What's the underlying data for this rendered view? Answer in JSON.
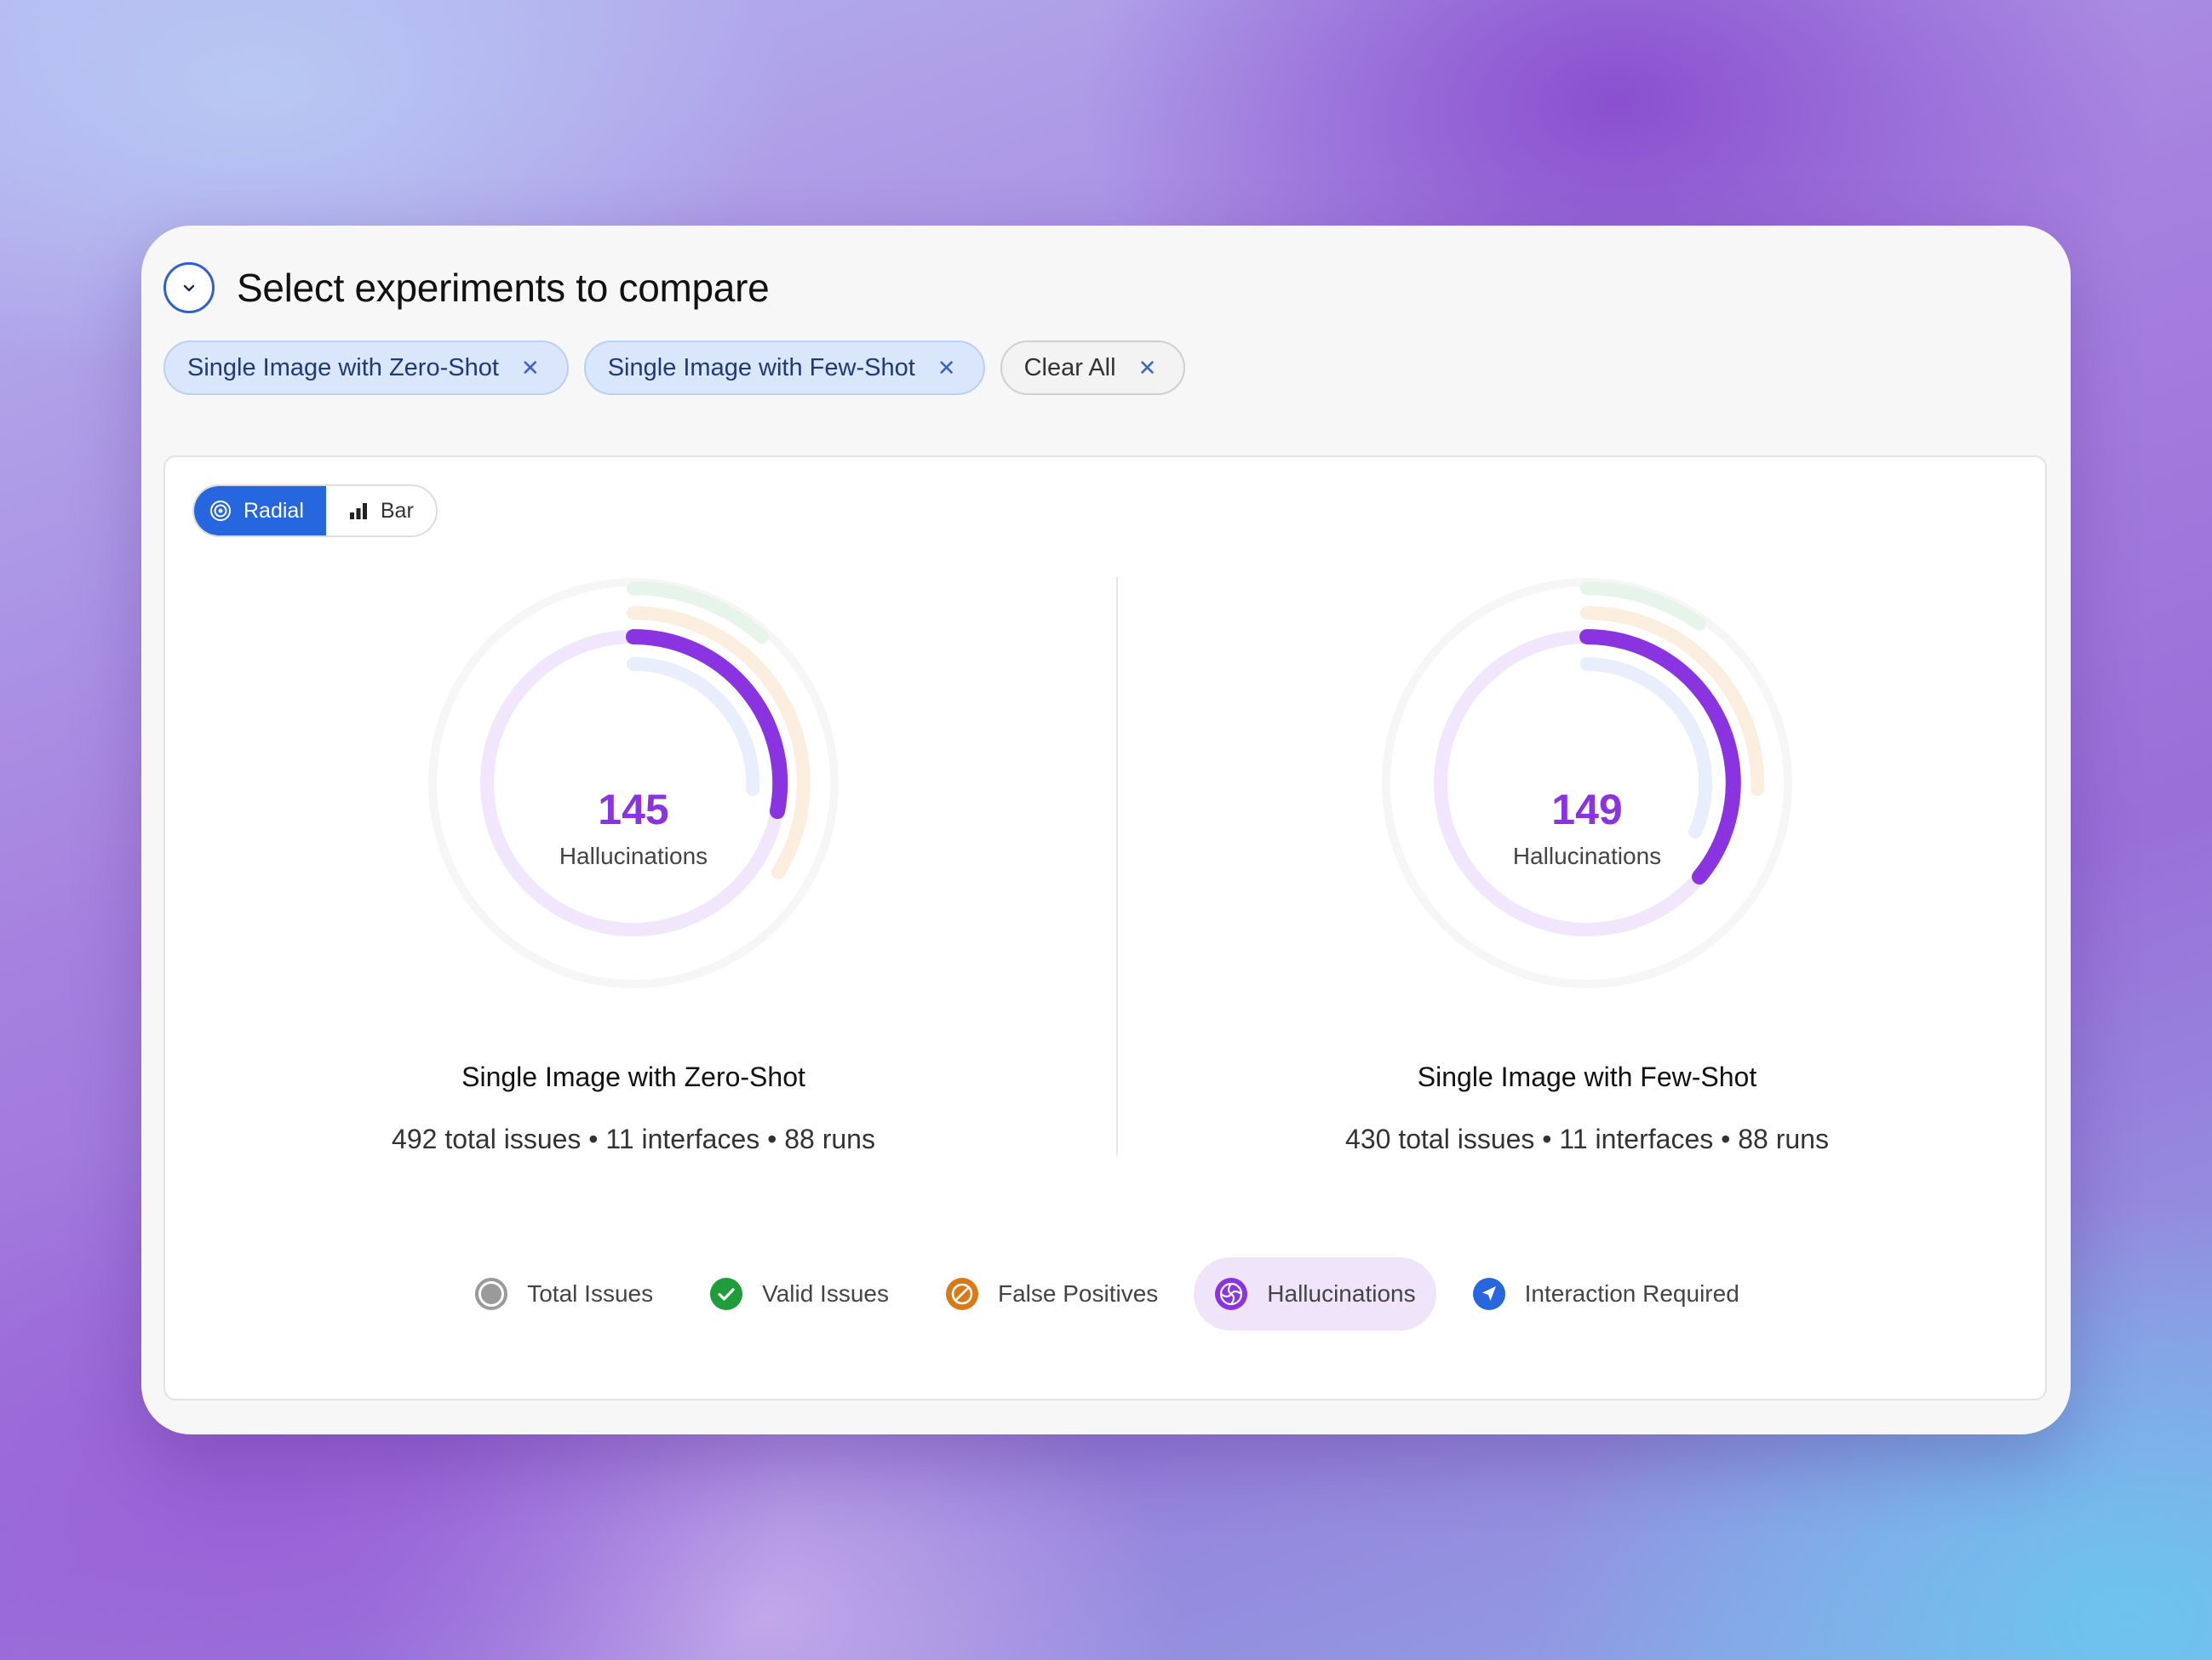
{
  "header": {
    "title": "Select experiments to compare"
  },
  "chips": [
    {
      "label": "Single Image with Zero-Shot"
    },
    {
      "label": "Single Image with Few-Shot"
    }
  ],
  "clear_all": {
    "label": "Clear All"
  },
  "view_toggle": {
    "radial_label": "Radial",
    "bar_label": "Bar",
    "active": "Radial"
  },
  "experiments": [
    {
      "name": "Single Image with Zero-Shot",
      "center_value": "145",
      "center_label": "Hallucinations",
      "stats": "492 total issues • 11 interfaces • 88 runs"
    },
    {
      "name": "Single Image with Few-Shot",
      "center_value": "149",
      "center_label": "Hallucinations",
      "stats": "430 total issues • 11 interfaces • 88 runs"
    }
  ],
  "legend": [
    {
      "label": "Total Issues",
      "icon": "circle-icon",
      "color": "#9a9a9a"
    },
    {
      "label": "Valid Issues",
      "icon": "check-icon",
      "color": "#1f9d3a"
    },
    {
      "label": "False Positives",
      "icon": "slash-circle-icon",
      "color": "#d97a16"
    },
    {
      "label": "Hallucinations",
      "icon": "swirl-icon",
      "color": "#8a33e0",
      "active": true
    },
    {
      "label": "Interaction Required",
      "icon": "pointer-icon",
      "color": "#2667e0"
    }
  ],
  "chart_data": [
    {
      "type": "radial",
      "title": "Single Image with Zero-Shot",
      "highlighted_series": "Hallucinations",
      "series": [
        {
          "name": "Total Issues",
          "value": 492
        },
        {
          "name": "Hallucinations",
          "value": 145
        }
      ]
    },
    {
      "type": "radial",
      "title": "Single Image with Few-Shot",
      "highlighted_series": "Hallucinations",
      "series": [
        {
          "name": "Total Issues",
          "value": 430
        },
        {
          "name": "Hallucinations",
          "value": 149
        }
      ]
    }
  ]
}
